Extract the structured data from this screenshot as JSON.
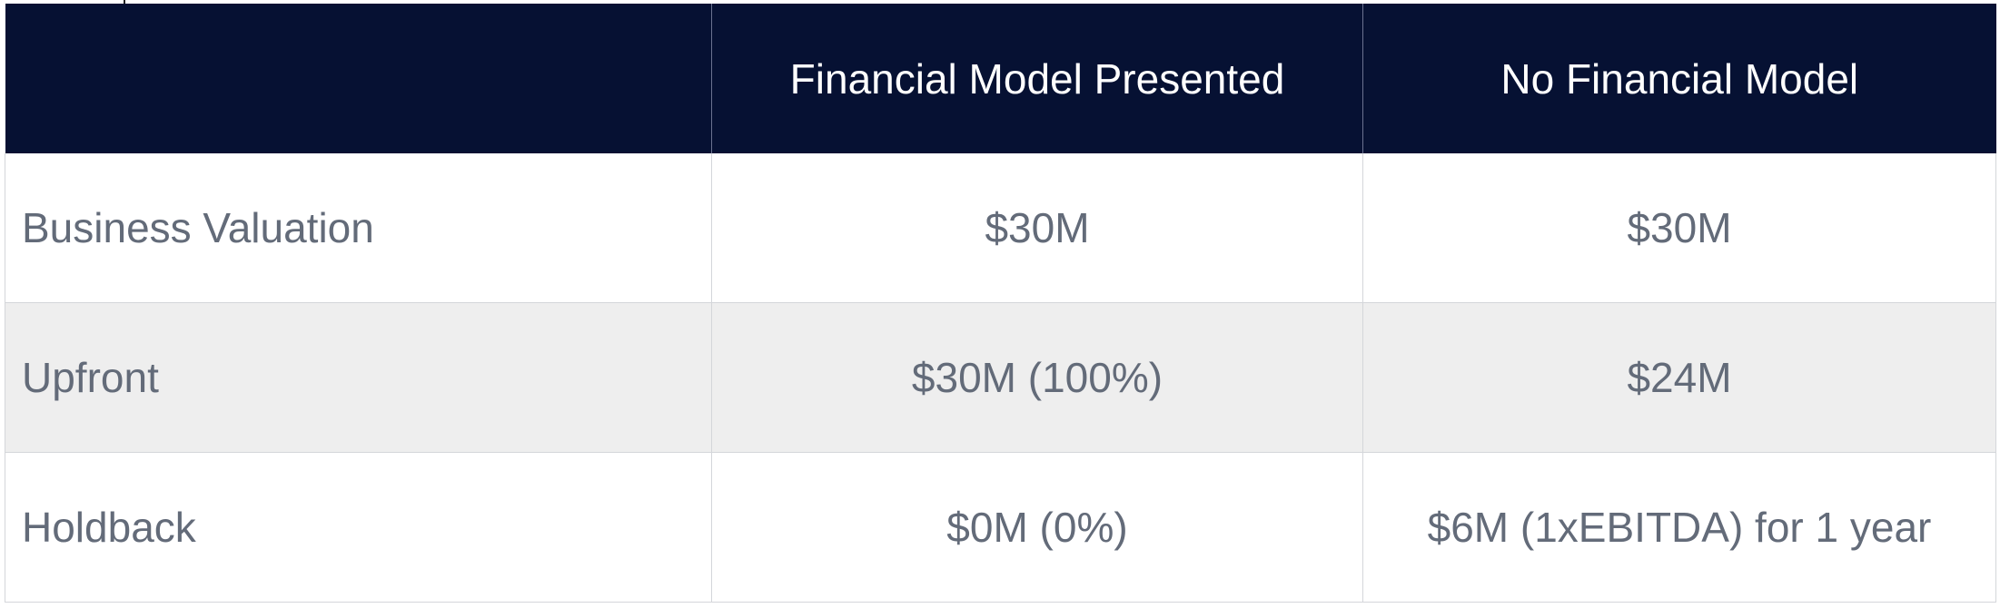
{
  "table": {
    "header": {
      "corner": "",
      "col1": "Financial Model Presented",
      "col2": "No Financial Model"
    },
    "rows": [
      {
        "label": "Business Valuation",
        "with_model": "$30M",
        "without_model": "$30M"
      },
      {
        "label": "Upfront",
        "with_model": "$30M (100%)",
        "without_model": "$24M"
      },
      {
        "label": "Holdback",
        "with_model": "$0M (0%)",
        "without_model": "$6M (1xEBITDA) for 1 year"
      }
    ]
  },
  "colors": {
    "header_bg": "#061133",
    "header_text": "#ffffff",
    "body_text": "#636b79",
    "shaded_row": "#eeeeee",
    "grid_line": "#d4d6da"
  }
}
